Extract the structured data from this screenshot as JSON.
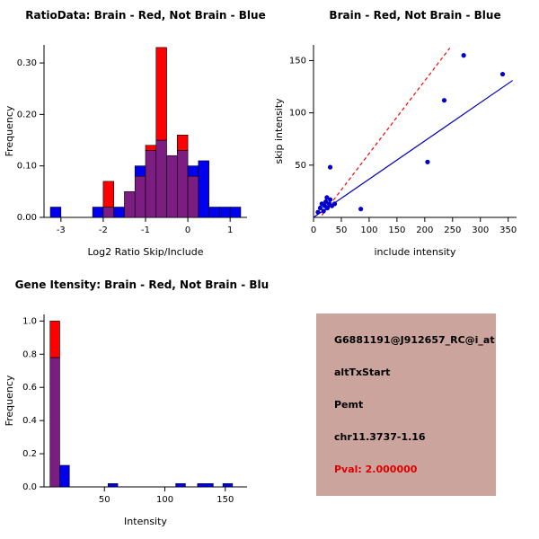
{
  "colors": {
    "red": "#ff0000",
    "blue": "#0000ee",
    "overlap": "#7c1d82",
    "axis": "#000000",
    "info_bg": "#cba49e",
    "pval_red": "#dd0000",
    "fit_line": "#0000bb",
    "ref_line": "#ff0000",
    "point": "#0000cc"
  },
  "info_panel": {
    "probe_id": "G6881191@J912657_RC@i_at",
    "event_type": "altTxStart",
    "gene": "Pemt",
    "location": "chr11.3737-1.16",
    "pval": "Pval: 2.000000"
  },
  "chart_data": [
    {
      "id": "ratio-histogram",
      "type": "bar",
      "title": "RatioData: Brain - Red, Not Brain - Blue",
      "xlabel": "Log2 Ratio Skip/Include",
      "ylabel": "Frequency",
      "xlim": [
        -3.4,
        1.4
      ],
      "ylim": [
        0,
        0.335
      ],
      "xticks": [
        -3,
        -2,
        -1,
        0,
        1
      ],
      "xtick_labels": [
        "-3",
        "-2",
        "-1",
        "0",
        "1"
      ],
      "yticks": [
        0,
        0.1,
        0.2,
        0.3
      ],
      "ytick_labels": [
        "0.00",
        "0.10",
        "0.20",
        "0.30"
      ],
      "series_legend": "red = Brain, blue = Not Brain, purple = overlap",
      "bins": [
        {
          "x0": -3.25,
          "x1": -3.0,
          "red": 0,
          "blue": 0.02
        },
        {
          "x0": -2.25,
          "x1": -2.0,
          "red": 0,
          "blue": 0.02
        },
        {
          "x0": -2.0,
          "x1": -1.75,
          "red": 0.07,
          "blue": 0.02
        },
        {
          "x0": -1.75,
          "x1": -1.5,
          "red": 0,
          "blue": 0.02
        },
        {
          "x0": -1.5,
          "x1": -1.25,
          "red": 0.05,
          "blue": 0.05
        },
        {
          "x0": -1.25,
          "x1": -1.0,
          "red": 0.08,
          "blue": 0.1
        },
        {
          "x0": -1.0,
          "x1": -0.75,
          "red": 0.14,
          "blue": 0.13
        },
        {
          "x0": -0.75,
          "x1": -0.5,
          "red": 0.33,
          "blue": 0.15
        },
        {
          "x0": -0.5,
          "x1": -0.25,
          "red": 0.12,
          "blue": 0.12
        },
        {
          "x0": -0.25,
          "x1": 0.0,
          "red": 0.16,
          "blue": 0.13
        },
        {
          "x0": 0.0,
          "x1": 0.25,
          "red": 0.08,
          "blue": 0.1
        },
        {
          "x0": 0.25,
          "x1": 0.5,
          "red": 0,
          "blue": 0.11
        },
        {
          "x0": 0.5,
          "x1": 0.75,
          "red": 0,
          "blue": 0.02
        },
        {
          "x0": 0.75,
          "x1": 1.0,
          "red": 0,
          "blue": 0.02
        },
        {
          "x0": 1.0,
          "x1": 1.25,
          "red": 0,
          "blue": 0.02
        }
      ]
    },
    {
      "id": "intensity-scatter",
      "type": "scatter",
      "title": "Brain - Red, Not Brain - Blue",
      "xlabel": "include intensity",
      "ylabel": "skip intensity",
      "xlim": [
        0,
        365
      ],
      "ylim": [
        0,
        165
      ],
      "xticks": [
        0,
        50,
        100,
        150,
        200,
        250,
        300,
        350
      ],
      "xtick_labels": [
        "0",
        "50",
        "100",
        "150",
        "200",
        "250",
        "300",
        "350"
      ],
      "yticks": [
        50,
        100,
        150
      ],
      "ytick_labels": [
        "50",
        "100",
        "150"
      ],
      "points": [
        [
          8,
          5
        ],
        [
          12,
          9
        ],
        [
          15,
          13
        ],
        [
          18,
          6
        ],
        [
          20,
          11
        ],
        [
          22,
          15
        ],
        [
          25,
          9
        ],
        [
          28,
          13
        ],
        [
          30,
          17
        ],
        [
          33,
          11
        ],
        [
          38,
          13
        ],
        [
          24,
          19
        ],
        [
          30,
          48
        ],
        [
          85,
          8
        ],
        [
          205,
          53
        ],
        [
          235,
          112
        ],
        [
          270,
          155
        ],
        [
          340,
          137
        ]
      ],
      "lines": [
        {
          "name": "fit-line",
          "color": "#0000bb",
          "dash": "",
          "from": [
            0,
            0
          ],
          "to": [
            358,
            131
          ]
        },
        {
          "name": "reference-line",
          "color": "#ff0000",
          "dash": "4,3",
          "from": [
            15,
            2
          ],
          "to": [
            245,
            162
          ]
        }
      ]
    },
    {
      "id": "gene-intensity-histogram",
      "type": "bar",
      "title": "Gene Itensity: Brain - Red, Not Brain - Blue",
      "xlabel": "Intensity",
      "ylabel": "Frequency",
      "xlim": [
        0,
        168
      ],
      "ylim": [
        0,
        1.04
      ],
      "xticks": [
        50,
        100,
        150
      ],
      "xtick_labels": [
        "50",
        "100",
        "150"
      ],
      "yticks": [
        0,
        0.2,
        0.4,
        0.6,
        0.8,
        1.0
      ],
      "ytick_labels": [
        "0.0",
        "0.2",
        "0.4",
        "0.6",
        "0.8",
        "1.0"
      ],
      "series_legend": "red = Brain, blue = Not Brain, purple = overlap",
      "bins": [
        {
          "x0": 5,
          "x1": 13,
          "red": 1.0,
          "blue": 0.78
        },
        {
          "x0": 13,
          "x1": 21,
          "red": 0,
          "blue": 0.13
        },
        {
          "x0": 53,
          "x1": 61,
          "red": 0,
          "blue": 0.02
        },
        {
          "x0": 109,
          "x1": 117,
          "red": 0,
          "blue": 0.02
        },
        {
          "x0": 127,
          "x1": 140,
          "red": 0,
          "blue": 0.02
        },
        {
          "x0": 148,
          "x1": 156,
          "red": 0,
          "blue": 0.02
        }
      ]
    }
  ]
}
